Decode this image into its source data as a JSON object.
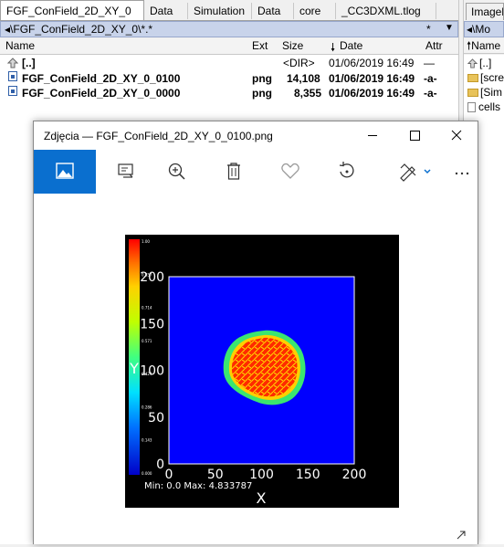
{
  "file_manager": {
    "tabs": [
      {
        "label": "FGF_ConField_2D_XY_0",
        "active": true
      },
      {
        "label": "Data"
      },
      {
        "label": "Simulation"
      },
      {
        "label": "Data"
      },
      {
        "label": "core"
      },
      {
        "label": "_CC3DXML.tlog"
      }
    ],
    "path": "◂\\FGF_ConField_2D_XY_0\\*.*",
    "filter_star": "*",
    "columns": {
      "name": "Name",
      "ext": "Ext",
      "size": "Size",
      "date": "Date",
      "attr": "Attr"
    },
    "files": [
      {
        "name": "[..]",
        "ext": "",
        "size": "<DIR>",
        "date": "01/06/2019 16:49",
        "attr": "—"
      },
      {
        "name": "FGF_ConField_2D_XY_0_0100",
        "ext": "png",
        "size": "14,108",
        "date": "01/06/2019 16:49",
        "attr": "-a-"
      },
      {
        "name": "FGF_ConField_2D_XY_0_0000",
        "ext": "png",
        "size": "8,355",
        "date": "01/06/2019 16:49",
        "attr": "-a-"
      }
    ],
    "right_panel": {
      "tab": "Imagel",
      "path": "◂\\Mo",
      "col_name": "Name",
      "items": [
        {
          "label": "[..]",
          "type": "up"
        },
        {
          "label": "[scre",
          "type": "folder"
        },
        {
          "label": "[Sim",
          "type": "folder"
        },
        {
          "label": "cells",
          "type": "file"
        }
      ]
    }
  },
  "photos_window": {
    "title": "Zdjęcia — FGF_ConField_2D_XY_0_0100.png",
    "toolbar_icons": [
      "image-icon",
      "slideshow-icon",
      "zoom-icon",
      "delete-icon",
      "favorite-icon",
      "rotate-icon",
      "edit-icon",
      "more-icon"
    ],
    "accent_color": "#0a6fcf"
  },
  "plot": {
    "y_ticks": [
      "200",
      "150",
      "100",
      "50",
      "0"
    ],
    "x_ticks": [
      "0",
      "50",
      "100",
      "150",
      "200"
    ],
    "xlabel": "X",
    "ylabel": "Y",
    "minmax": "Min: 0.0 Max: 4.833787",
    "colorbar_ticks": [
      "1.00",
      "0.857",
      "0.714",
      "0.571",
      "0.429",
      "0.286",
      "0.143",
      "0.000"
    ]
  }
}
